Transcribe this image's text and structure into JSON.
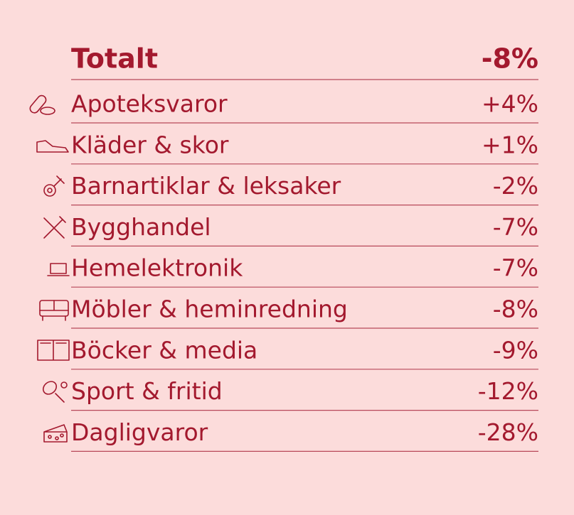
{
  "header": {
    "label": "Totalt",
    "value": "-8%"
  },
  "table": {
    "rows": [
      [
        "Apoteksvaror",
        "+4%"
      ],
      [
        "Kläder & skor",
        "+1%"
      ],
      [
        "Barnartiklar & leksaker",
        "-2%"
      ],
      [
        "Bygghandel",
        "-7%"
      ],
      [
        "Hemelektronik",
        "-7%"
      ],
      [
        "Möbler & heminredning",
        "-8%"
      ],
      [
        "Böcker & media",
        "-9%"
      ],
      [
        "Sport & fritid",
        "-12%"
      ],
      [
        "Dagligvaror",
        "-28%"
      ]
    ]
  }
}
